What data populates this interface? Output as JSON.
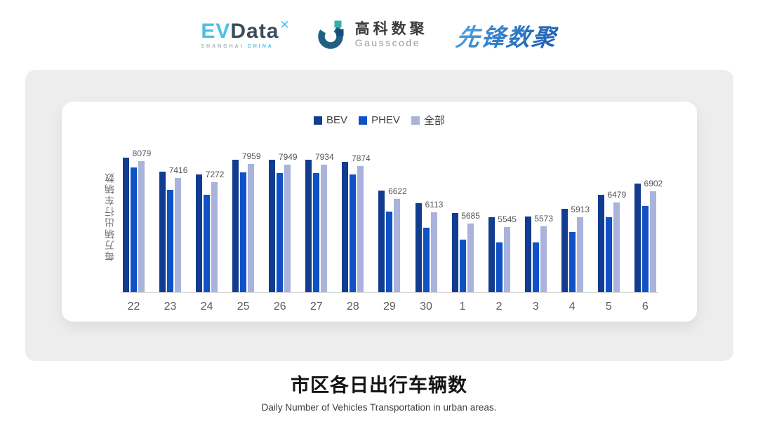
{
  "header": {
    "evdata": {
      "ev": "EV",
      "data": "Data",
      "mark": "✕",
      "sub_left": "SHANGHAI",
      "sub_right": "CHINA"
    },
    "gausscode": {
      "cn": "高科数聚",
      "en": "Gausscode"
    },
    "xianfeng": {
      "text": "先锋数聚"
    }
  },
  "chart_data": {
    "type": "bar",
    "title": "市区各日出行车辆数",
    "subtitle": "Daily Number of Vehicles Transportation in urban areas.",
    "ylabel": "每万辆出行车辆数",
    "xlabel": "",
    "categories": [
      "22",
      "23",
      "24",
      "25",
      "26",
      "27",
      "28",
      "29",
      "30",
      "1",
      "2",
      "3",
      "4",
      "5",
      "6"
    ],
    "series": [
      {
        "name": "BEV",
        "color": "#123c8f",
        "values": [
          8210,
          7670,
          7560,
          8140,
          8120,
          8140,
          8050,
          6930,
          6450,
          6080,
          5910,
          5950,
          6250,
          6780,
          7210
        ]
      },
      {
        "name": "PHEV",
        "color": "#0e52c6",
        "values": [
          7830,
          6970,
          6780,
          7640,
          7620,
          7620,
          7560,
          6120,
          5520,
          5060,
          4940,
          4950,
          5350,
          5920,
          6360
        ]
      },
      {
        "name": "全部",
        "color": "#a9b3dc",
        "values": [
          8079,
          7416,
          7272,
          7959,
          7949,
          7934,
          7874,
          6622,
          6113,
          5685,
          5545,
          5573,
          5913,
          6479,
          6902
        ]
      }
    ],
    "data_labels": [
      8079,
      7416,
      7272,
      7959,
      7949,
      7934,
      7874,
      6622,
      6113,
      5685,
      5545,
      5573,
      5913,
      6479,
      6902
    ],
    "data_label_series": "全部",
    "ylim": [
      3000,
      8400
    ],
    "grid": false,
    "legend_position": "top",
    "y_ticks_shown": false
  },
  "colors": {
    "panel_bg": "#ededed",
    "card_bg": "#ffffff",
    "axis_line": "#d9d9d9",
    "evdata_accent": "#4ac0e8",
    "evdata_dark": "#3d4b5b",
    "gauss_mark_ring": "#1f5f82",
    "gauss_mark_teal": "#2fb2a8",
    "gauss_mark_navy": "#1a4a7a",
    "xianfeng_blue": "#2a6cbe"
  }
}
